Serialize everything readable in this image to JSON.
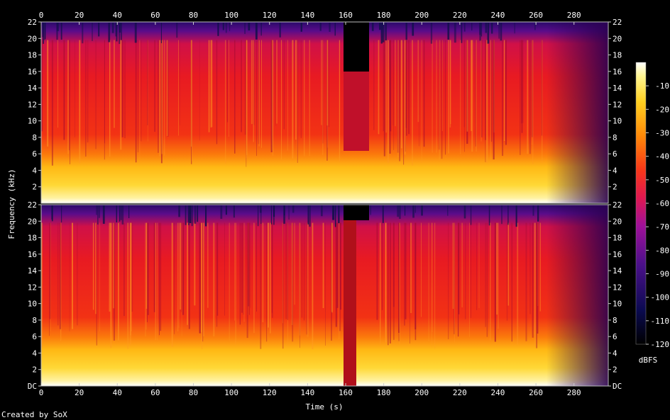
{
  "chart_data": {
    "type": "heatmap",
    "subtype": "spectrogram",
    "xlabel": "Time (s)",
    "ylabel": "Frequency (kHz)",
    "xlim": [
      0,
      298
    ],
    "ylim": [
      0,
      22
    ],
    "x_ticks": [
      "0",
      "20",
      "40",
      "60",
      "80",
      "100",
      "120",
      "140",
      "160",
      "180",
      "200",
      "220",
      "240",
      "260",
      "280"
    ],
    "x_tick_values": [
      0,
      20,
      40,
      60,
      80,
      100,
      120,
      140,
      160,
      180,
      200,
      220,
      240,
      260,
      280
    ],
    "y_ticks_top": [
      "22",
      "20",
      "18",
      "16",
      "14",
      "12",
      "10",
      "8",
      "6",
      "4",
      "2"
    ],
    "y_ticks_bottom": [
      "22",
      "20",
      "18",
      "16",
      "14",
      "12",
      "10",
      "8",
      "6",
      "4",
      "2",
      "DC"
    ],
    "y_tick_values_top": [
      22,
      20,
      18,
      16,
      14,
      12,
      10,
      8,
      6,
      4,
      2
    ],
    "y_tick_values_bottom": [
      22,
      20,
      18,
      16,
      14,
      12,
      10,
      8,
      6,
      4,
      2,
      0
    ],
    "channels": [
      {
        "channel": "top"
      },
      {
        "channel": "bottom"
      }
    ],
    "colorbar": {
      "label": "dBFS",
      "range": [
        -120,
        0
      ],
      "ticks": [
        "-10",
        "-20",
        "-30",
        "-40",
        "-50",
        "-60",
        "-70",
        "-80",
        "-90",
        "-100",
        "-110",
        "-120"
      ],
      "tick_values": [
        -10,
        -20,
        -30,
        -40,
        -50,
        -60,
        -70,
        -80,
        -90,
        -100,
        -110,
        -120
      ]
    },
    "footer": "Created by SoX"
  }
}
